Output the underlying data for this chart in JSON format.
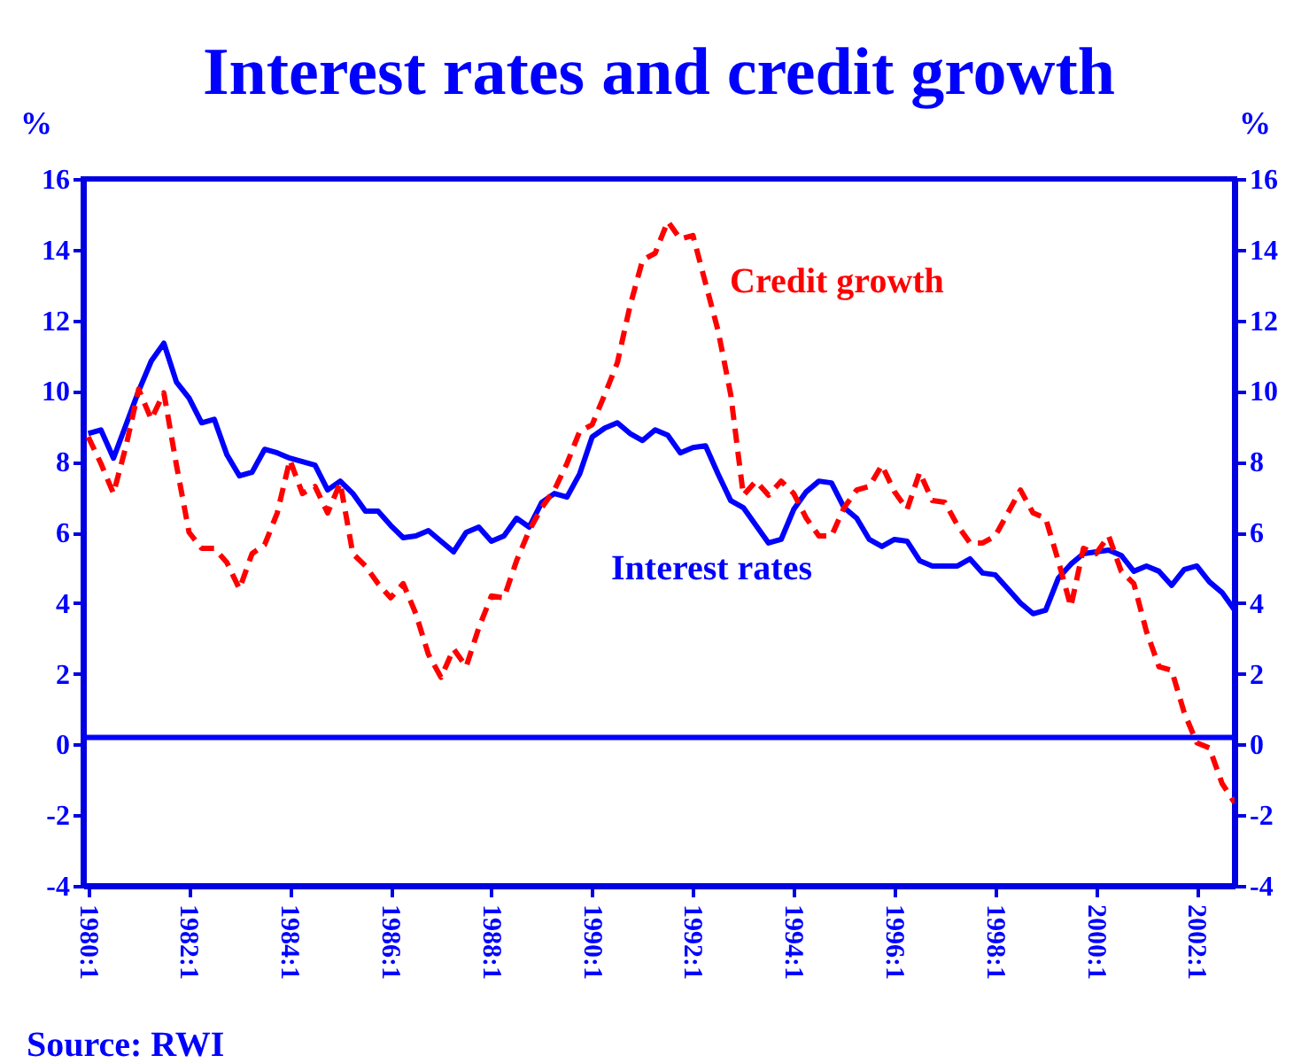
{
  "chart_data": {
    "type": "line",
    "title": "Interest rates and credit growth",
    "ylabel": "%",
    "y2label": "%",
    "categories": [
      "1980:1",
      null,
      null,
      null,
      null,
      null,
      null,
      null,
      "1982:1",
      null,
      null,
      null,
      null,
      null,
      null,
      null,
      "1984:1",
      null,
      null,
      null,
      null,
      null,
      null,
      null,
      "1986:1",
      null,
      null,
      null,
      null,
      null,
      null,
      null,
      "1988:1",
      null,
      null,
      null,
      null,
      null,
      null,
      null,
      "1990:1",
      null,
      null,
      null,
      null,
      null,
      null,
      null,
      "1992:1",
      null,
      null,
      null,
      null,
      null,
      null,
      null,
      "1994:1",
      null,
      null,
      null,
      null,
      null,
      null,
      null,
      "1996:1",
      null,
      null,
      null,
      null,
      null,
      null,
      null,
      "1998:1",
      null,
      null,
      null,
      null,
      null,
      null,
      null,
      "2000:1",
      null,
      null,
      null,
      null,
      null,
      null,
      null,
      "2002:1",
      null,
      null,
      null
    ],
    "ylim": [
      -4,
      16
    ],
    "y2lim": [
      -4,
      16
    ],
    "yticks": [
      -4,
      -2,
      0,
      2,
      4,
      6,
      8,
      10,
      12,
      14,
      16
    ],
    "y2ticks": [
      -4,
      -2,
      0,
      2,
      4,
      6,
      8,
      10,
      12,
      14,
      16
    ],
    "grid": false,
    "legend": false,
    "ref_lines": [
      {
        "axis": "y",
        "value": 0.2,
        "color": "#0000ff"
      }
    ],
    "annotations": [
      "Source: RWI"
    ],
    "series": [
      {
        "name": "Interest rates",
        "color": "#0000ff",
        "line_style": "solid",
        "values": [
          8.8,
          8.9,
          8.1,
          9.05,
          10.0,
          10.85,
          11.35,
          10.25,
          9.8,
          9.1,
          9.2,
          8.2,
          7.6,
          7.7,
          8.35,
          8.25,
          8.1,
          8.0,
          7.9,
          7.2,
          7.45,
          7.1,
          6.6,
          6.6,
          6.2,
          5.85,
          5.9,
          6.05,
          5.75,
          5.45,
          6.0,
          6.15,
          5.75,
          5.9,
          6.4,
          6.15,
          6.85,
          7.1,
          7.0,
          7.65,
          8.7,
          8.95,
          9.1,
          8.8,
          8.6,
          8.9,
          8.75,
          8.25,
          8.4,
          8.45,
          7.65,
          6.9,
          6.7,
          6.2,
          5.7,
          5.8,
          6.65,
          7.15,
          7.45,
          7.4,
          6.7,
          6.4,
          5.8,
          5.6,
          5.8,
          5.75,
          5.2,
          5.05,
          5.05,
          5.05,
          5.25,
          4.85,
          4.8,
          4.4,
          4.0,
          3.7,
          3.8,
          4.7,
          5.1,
          5.4,
          5.45,
          5.5,
          5.35,
          4.9,
          5.05,
          4.9,
          4.5,
          4.95,
          5.05,
          4.6,
          4.3,
          3.8
        ]
      },
      {
        "name": "Credit growth",
        "color": "#ff0000",
        "line_style": "dashed",
        "values": [
          8.7,
          7.95,
          7.1,
          8.45,
          10.05,
          9.2,
          9.95,
          7.9,
          6.0,
          5.55,
          5.55,
          5.15,
          4.4,
          5.4,
          5.65,
          6.55,
          8.05,
          7.1,
          7.3,
          6.55,
          7.4,
          5.4,
          5.05,
          4.55,
          4.15,
          4.55,
          3.7,
          2.55,
          1.9,
          2.7,
          2.2,
          3.3,
          4.2,
          4.15,
          5.2,
          6.05,
          6.7,
          7.2,
          7.95,
          8.85,
          9.05,
          9.9,
          10.8,
          12.4,
          13.7,
          13.9,
          14.8,
          14.3,
          14.4,
          13.05,
          11.7,
          9.9,
          7.05,
          7.45,
          7.05,
          7.45,
          7.1,
          6.4,
          5.9,
          5.9,
          6.7,
          7.2,
          7.3,
          7.9,
          7.15,
          6.65,
          7.7,
          6.9,
          6.85,
          6.2,
          5.7,
          5.7,
          5.9,
          6.55,
          7.2,
          6.55,
          6.4,
          5.2,
          3.9,
          5.55,
          5.4,
          5.9,
          4.9,
          4.55,
          3.2,
          2.2,
          2.1,
          0.9,
          0.05,
          -0.1,
          -1.1,
          -1.65
        ]
      }
    ]
  }
}
